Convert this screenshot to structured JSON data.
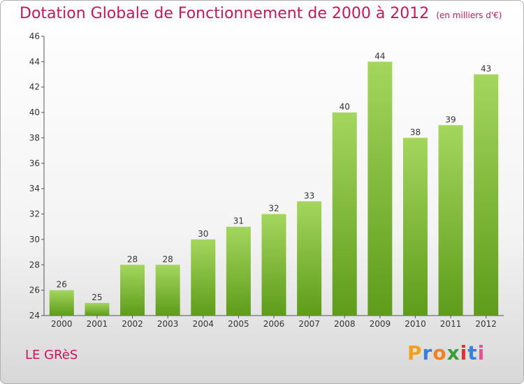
{
  "chart_data": {
    "type": "bar",
    "title": "Dotation Globale de Fonctionnement de 2000 à 2012",
    "subtitle": "(en milliers d'€)",
    "categories": [
      "2000",
      "2001",
      "2002",
      "2003",
      "2004",
      "2005",
      "2006",
      "2007",
      "2008",
      "2009",
      "2010",
      "2011",
      "2012"
    ],
    "values": [
      26,
      25,
      28,
      28,
      30,
      31,
      32,
      33,
      40,
      44,
      38,
      39,
      43
    ],
    "ylim": [
      24,
      46
    ],
    "yticks": [
      24,
      26,
      28,
      30,
      32,
      34,
      36,
      38,
      40,
      42,
      44,
      46
    ],
    "grid": false,
    "bar_color": "#7cb82f"
  },
  "commune": "LE GRèS",
  "logo": {
    "letters": [
      "P",
      "r",
      "o",
      "x",
      "i",
      "t",
      "i"
    ]
  }
}
